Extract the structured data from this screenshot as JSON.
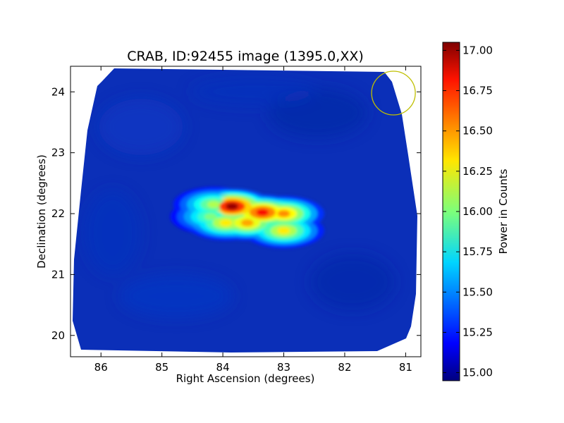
{
  "chart_data": {
    "type": "heatmap",
    "title": "CRAB, ID:92455 image (1395.0,XX)",
    "xlabel": "Right Ascension (degrees)",
    "ylabel": "Declination (degrees)",
    "x_reversed": true,
    "xlim": [
      86.5,
      80.75
    ],
    "ylim": [
      19.65,
      24.42
    ],
    "xticks": [
      86,
      85,
      84,
      83,
      82,
      81
    ],
    "yticks": [
      20,
      21,
      22,
      23,
      24
    ],
    "colormap": "jet",
    "colorbar": {
      "label": "Power in Counts",
      "range": [
        14.95,
        17.05
      ],
      "ticks": [
        "15.00",
        "15.25",
        "15.50",
        "15.75",
        "16.00",
        "16.25",
        "16.50",
        "16.75",
        "17.00"
      ]
    },
    "background_level": 15.08,
    "source_peaks": [
      {
        "ra": 83.85,
        "dec": 22.12,
        "value": 17.0
      },
      {
        "ra": 83.35,
        "dec": 22.02,
        "value": 16.8
      },
      {
        "ra": 83.0,
        "dec": 22.0,
        "value": 16.5
      },
      {
        "ra": 83.6,
        "dec": 21.85,
        "value": 16.45
      },
      {
        "ra": 83.95,
        "dec": 21.85,
        "value": 16.3
      },
      {
        "ra": 83.0,
        "dec": 21.72,
        "value": 16.3
      },
      {
        "ra": 84.15,
        "dec": 22.15,
        "value": 16.1
      },
      {
        "ra": 84.2,
        "dec": 21.95,
        "value": 16.0
      }
    ],
    "marker_circle": {
      "ra": 81.2,
      "dec": 23.98,
      "color": "#bfbf00"
    }
  }
}
